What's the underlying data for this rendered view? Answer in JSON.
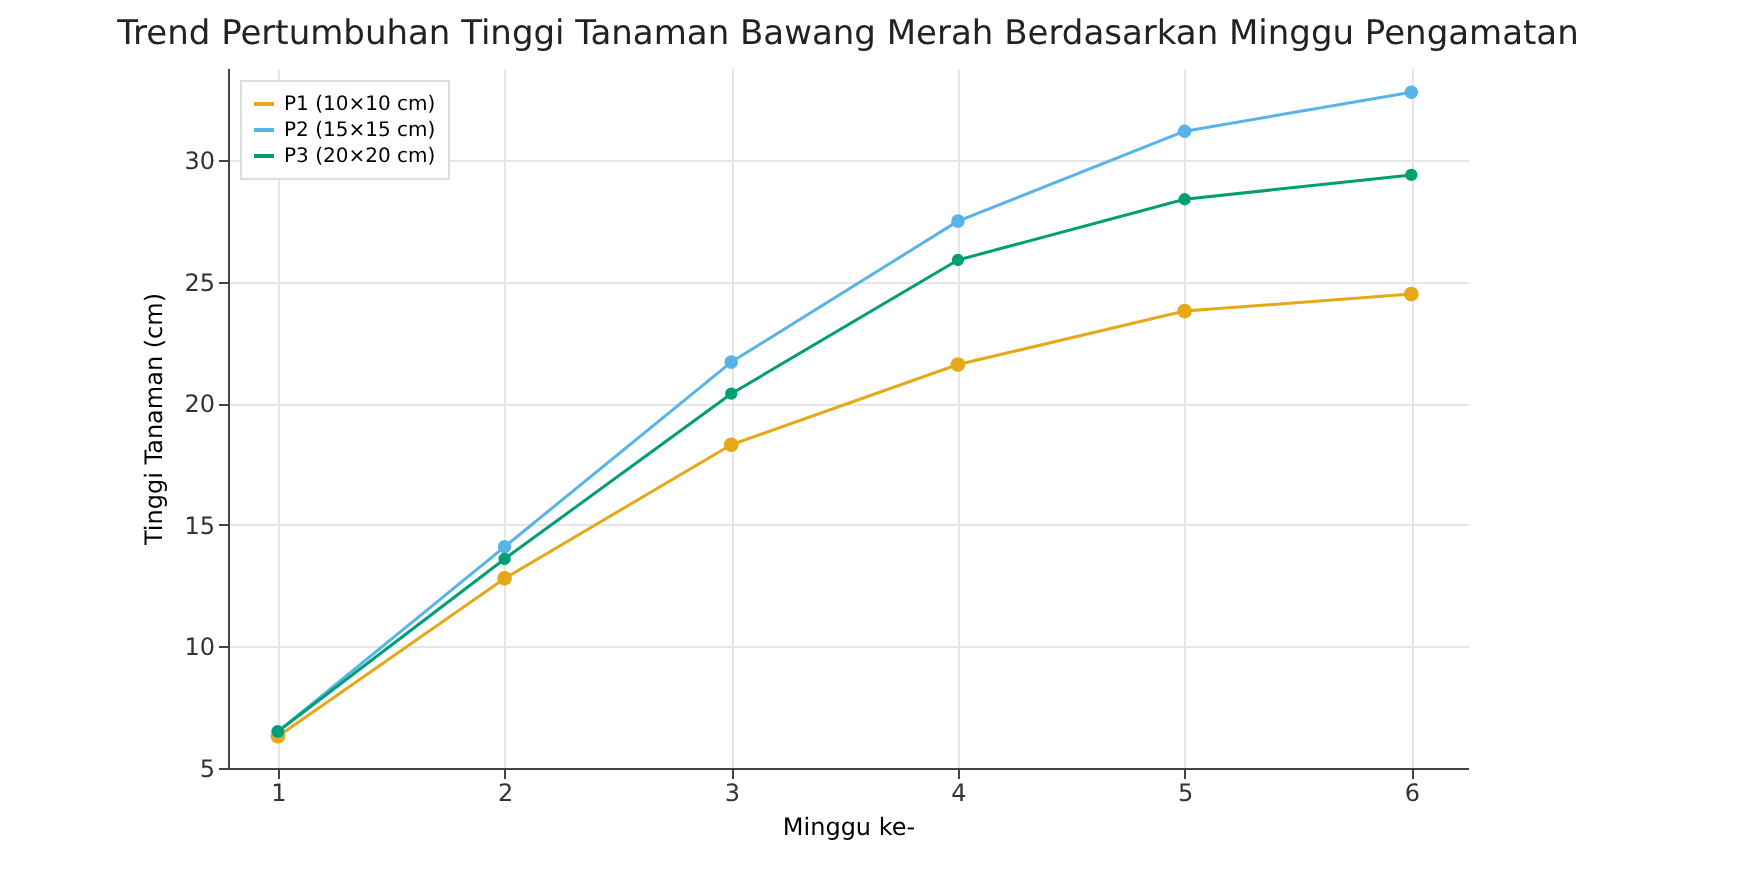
{
  "chart_data": {
    "type": "line",
    "title": "Trend Pertumbuhan Tinggi Tanaman Bawang Merah Berdasarkan Minggu Pengamatan",
    "xlabel": "Minggu ke-",
    "ylabel": "Tinggi Tanaman (cm)",
    "x": [
      1,
      2,
      3,
      4,
      5,
      6
    ],
    "xlim": [
      0.78,
      6.25
    ],
    "xticks": [
      1,
      2,
      3,
      4,
      5,
      6
    ],
    "ylim": [
      5,
      33.8
    ],
    "yticks": [
      5,
      10,
      15,
      20,
      25,
      30
    ],
    "series": [
      {
        "name": "P1 (10×10 cm)",
        "color": "#e6a817",
        "values": [
          6.3,
          12.8,
          18.3,
          21.6,
          23.8,
          24.5
        ]
      },
      {
        "name": "P2 (15×15 cm)",
        "color": "#56b4e9",
        "values": [
          6.5,
          14.1,
          21.7,
          27.5,
          31.2,
          32.8
        ]
      },
      {
        "name": "P3 (20×20 cm)",
        "color": "#009e73",
        "values": [
          6.5,
          13.6,
          20.4,
          25.9,
          28.4,
          29.4
        ]
      }
    ],
    "grid": true,
    "legend": "top left",
    "marker": "circle",
    "line_style": "solid"
  }
}
